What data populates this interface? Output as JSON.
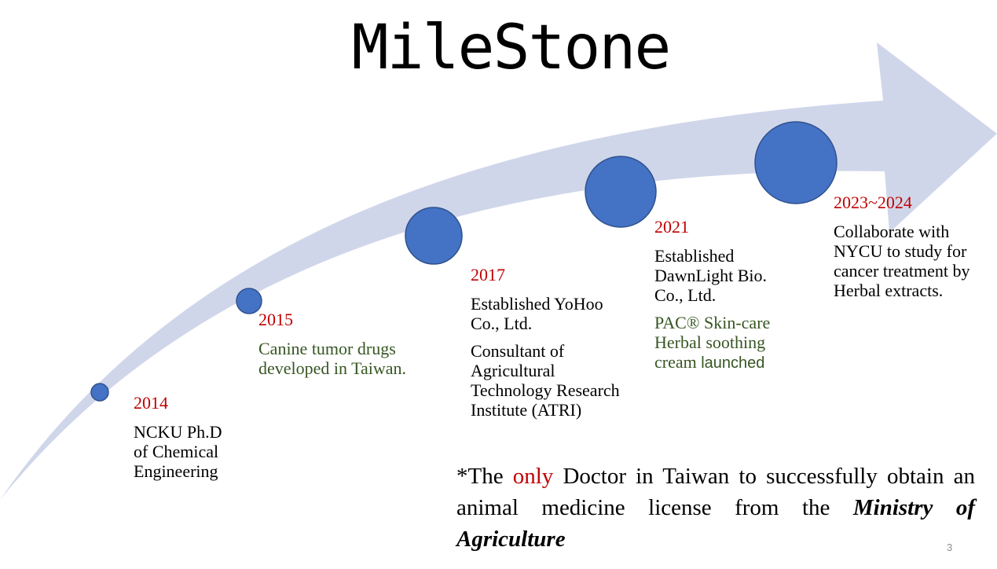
{
  "title": "MileStone",
  "milestones": [
    {
      "year": "2014",
      "lines": [
        "NCKU Ph.D",
        "of Chemical",
        "Engineering"
      ]
    },
    {
      "year": "2015",
      "text": "Canine tumor drugs developed in Taiwan."
    },
    {
      "year": "2017",
      "text1": "Established YoHoo Co., Ltd.",
      "text2": "Consultant of Agricultural Technology Research Institute (ATRI)"
    },
    {
      "year": "2021",
      "text1": "Established DawnLight Bio. Co., Ltd.",
      "text2a": "PAC® Skin-care Herbal  soothing cream ",
      "text2b": "launched"
    },
    {
      "year": "2023~2024",
      "text": "Collaborate with NYCU to study for cancer treatment by Herbal extracts."
    }
  ],
  "note": {
    "prefix": "*The ",
    "highlight": "only",
    "middle": " Doctor in Taiwan to successfully obtain an animal medicine license from the ",
    "emphasis": "Ministry of Agriculture"
  },
  "page_number": "3",
  "colors": {
    "arrow": "#d0d6ea",
    "dot": "#4472c4",
    "year": "#c00000",
    "green_text": "#375623"
  }
}
